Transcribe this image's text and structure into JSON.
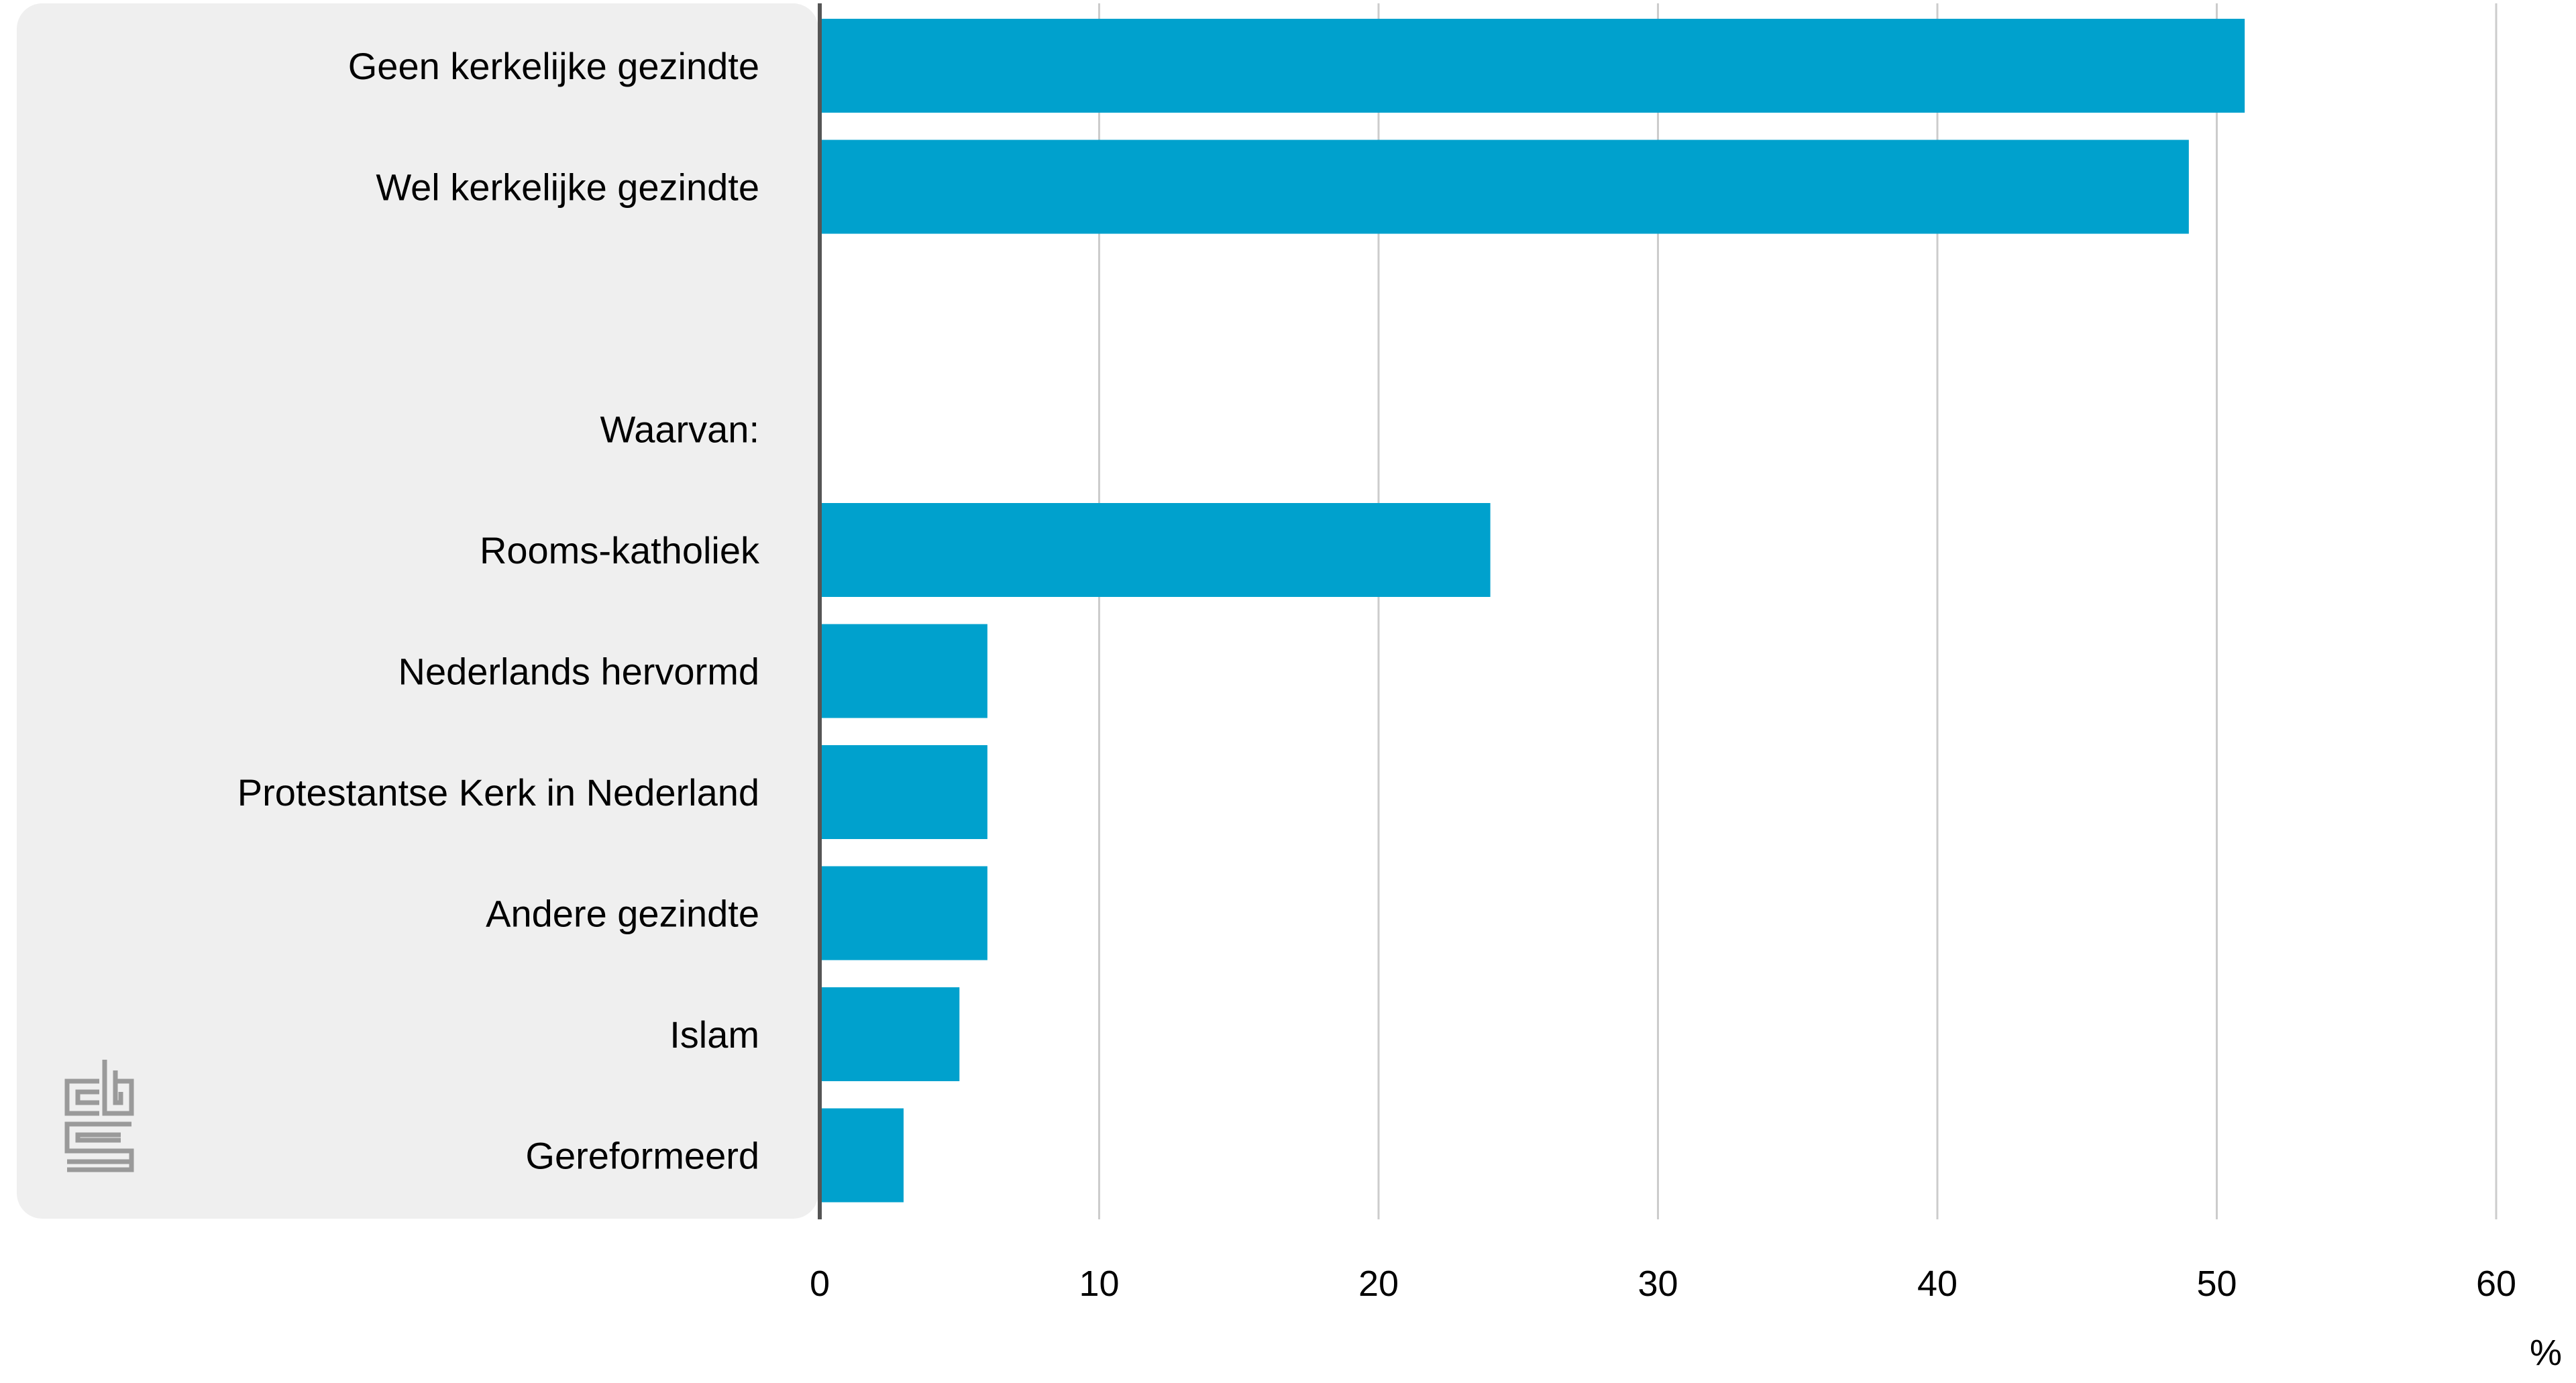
{
  "colors": {
    "bar": "#00a1cd",
    "panel": "#efefef",
    "grid": "#cccccc",
    "axis": "#555555",
    "logo": "#9a9a9a"
  },
  "logo": {
    "name": "cbs-logo",
    "text": "cbs"
  },
  "chart_data": {
    "type": "bar",
    "orientation": "horizontal",
    "categories": [
      "Geen kerkelijke gezindte",
      "Wel kerkelijke gezindte",
      "",
      "Waarvan:",
      "Rooms-katholiek",
      "Nederlands hervormd",
      "Protestantse Kerk in Nederland",
      "Andere gezindte",
      "Islam",
      "Gereformeerd"
    ],
    "values": [
      51,
      49,
      null,
      null,
      24,
      6,
      6,
      6,
      5,
      3
    ],
    "xlim": [
      0,
      60
    ],
    "xticks": [
      "0",
      "10",
      "20",
      "30",
      "40",
      "50",
      "60"
    ],
    "xunit": "%",
    "grid": true,
    "legend": "none"
  }
}
